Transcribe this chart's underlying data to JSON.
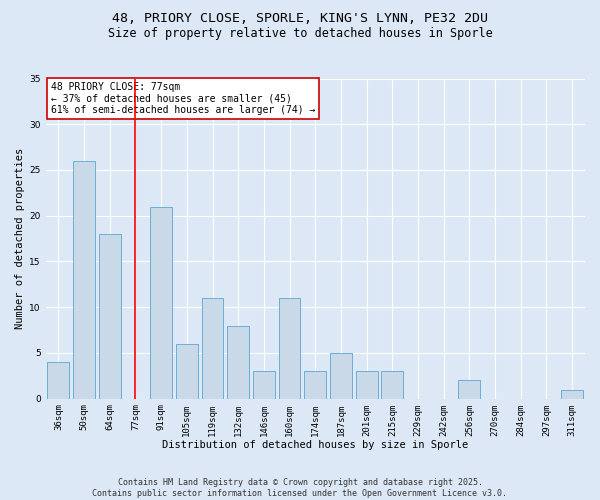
{
  "title_line1": "48, PRIORY CLOSE, SPORLE, KING'S LYNN, PE32 2DU",
  "title_line2": "Size of property relative to detached houses in Sporle",
  "xlabel": "Distribution of detached houses by size in Sporle",
  "ylabel": "Number of detached properties",
  "categories": [
    "36sqm",
    "50sqm",
    "64sqm",
    "77sqm",
    "91sqm",
    "105sqm",
    "119sqm",
    "132sqm",
    "146sqm",
    "160sqm",
    "174sqm",
    "187sqm",
    "201sqm",
    "215sqm",
    "229sqm",
    "242sqm",
    "256sqm",
    "270sqm",
    "284sqm",
    "297sqm",
    "311sqm"
  ],
  "values": [
    4,
    26,
    18,
    0,
    21,
    6,
    11,
    8,
    3,
    11,
    3,
    5,
    3,
    3,
    0,
    0,
    2,
    0,
    0,
    0,
    1
  ],
  "bar_color": "#c9d9e8",
  "bar_edge_color": "#6baed6",
  "red_line_index": 3,
  "annotation_text": "48 PRIORY CLOSE: 77sqm\n← 37% of detached houses are smaller (45)\n61% of semi-detached houses are larger (74) →",
  "annotation_box_color": "#ffffff",
  "annotation_box_edge_color": "#cc0000",
  "background_color": "#dce8f5",
  "grid_color": "#ffffff",
  "ylim": [
    0,
    35
  ],
  "yticks": [
    0,
    5,
    10,
    15,
    20,
    25,
    30,
    35
  ],
  "footer_text": "Contains HM Land Registry data © Crown copyright and database right 2025.\nContains public sector information licensed under the Open Government Licence v3.0.",
  "title_fontsize": 9.5,
  "subtitle_fontsize": 8.5,
  "xlabel_fontsize": 7.5,
  "ylabel_fontsize": 7.5,
  "tick_fontsize": 6.5,
  "annotation_fontsize": 7,
  "footer_fontsize": 6
}
